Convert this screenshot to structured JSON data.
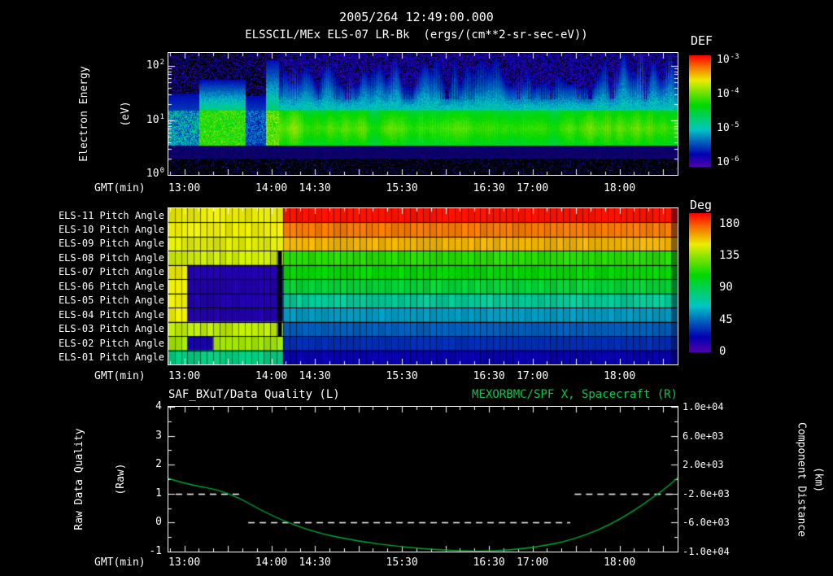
{
  "header": {
    "datetime": "2005/264 12:49:00.000",
    "title": "ELSSCIL/MEx ELS-07 LR-Bk  (ergs/(cm**2-sr-sec-eV))"
  },
  "colors": {
    "background": "#000000",
    "text": "#ffffff",
    "right_title_green": "#00cc44",
    "curve_green": "#00a832"
  },
  "chart_data": [
    {
      "type": "heatmap",
      "name": "electron-energy-spectrogram",
      "title": "ELSSCIL/MEx ELS-07 LR-Bk",
      "units": "ergs/(cm**2-sr-sec-eV)",
      "x_axis": {
        "label": "GMT(min)",
        "start_minute": 769,
        "end_minute": 1120,
        "start_time": "12:49",
        "end_time": "18:40",
        "tick_labels": [
          "13:00",
          "14:00",
          "14:30",
          "15:30",
          "16:30",
          "17:00",
          "18:00"
        ],
        "tick_minutes": [
          780,
          840,
          870,
          930,
          990,
          1020,
          1080
        ],
        "minor_tick_step_minutes": 10
      },
      "y_axis": {
        "label_lines": [
          "Electron Energy",
          "(eV)"
        ],
        "scale": "log",
        "min_ev": 1,
        "max_ev": 170,
        "decade_ticks": [
          {
            "base": "10",
            "exp": "2"
          },
          {
            "base": "10",
            "exp": "1"
          },
          {
            "base": "10",
            "exp": "0"
          }
        ]
      },
      "color_axis": {
        "label": "DEF",
        "scale": "log",
        "min": 1e-06,
        "max": 0.001,
        "tick_labels": [
          {
            "base": "10",
            "exp": "-3"
          },
          {
            "base": "10",
            "exp": "-4"
          },
          {
            "base": "10",
            "exp": "-5"
          },
          {
            "base": "10",
            "exp": "-6"
          }
        ]
      },
      "features": {
        "transition_minute": 845,
        "main_band_ev": [
          3.5,
          15
        ],
        "main_band_level": "~1e-4 (green), continuous and bright after ~14:05, patchy blue/green before",
        "burst": "bright enhancement ~13:10-13:56 reaching ~100 eV just before 14:00",
        "low_energy_gap_ev": [
          2.2,
          3.5
        ],
        "background": "sparse purple noise below 2.2 eV; dark blue with intermittent green streaks above the band"
      }
    },
    {
      "type": "heatmap",
      "name": "pitch-angle-rows",
      "x_axis_label": "GMT(min)",
      "color_axis": {
        "label": "Deg",
        "min": 0,
        "max": 180,
        "tick_labels": [
          "180",
          "135",
          "90",
          "45",
          "0"
        ]
      },
      "transition_minute": 845,
      "rows": [
        {
          "label": "ELS-11 Pitch Angle",
          "before_deg": 140,
          "after_deg": 177
        },
        {
          "label": "ELS-10 Pitch Angle",
          "before_deg": 140,
          "after_deg": 160
        },
        {
          "label": "ELS-09 Pitch Angle",
          "before_deg": 138,
          "after_deg": 150
        },
        {
          "label": "ELS-08 Pitch Angle",
          "before_deg": 135,
          "after_deg": 107
        },
        {
          "label": "ELS-07 Pitch Angle",
          "before_deg": 12,
          "after_deg": 100
        },
        {
          "label": "ELS-06 Pitch Angle",
          "before_deg": 12,
          "after_deg": 90
        },
        {
          "label": "ELS-05 Pitch Angle",
          "before_deg": 12,
          "after_deg": 70
        },
        {
          "label": "ELS-04 Pitch Angle",
          "before_deg": 12,
          "after_deg": 52
        },
        {
          "label": "ELS-03 Pitch Angle",
          "before_deg": 132,
          "after_deg": 40
        },
        {
          "label": "ELS-02 Pitch Angle",
          "before_deg": 128,
          "after_deg": 30
        },
        {
          "label": "ELS-01 Pitch Angle",
          "before_deg": 75,
          "after_deg": 18
        }
      ]
    },
    {
      "type": "line",
      "name": "data-quality-and-spacecraft-x",
      "x_axis_label": "GMT(min)",
      "title_left": "SAF_BXuT/Data Quality (L)",
      "title_right": "MEXORBMC/SPF X, Spacecraft (R)",
      "left_axis": {
        "label_lines": [
          "Raw Data Quality",
          "(Raw)"
        ],
        "min": -1,
        "max": 4,
        "ticks": [
          "4",
          "3",
          "2",
          "1",
          "0",
          "-1"
        ]
      },
      "right_axis": {
        "label_lines": [
          "Component Distance",
          "(km)"
        ],
        "min": -10000,
        "max": 10000,
        "ticks": [
          "1.0e+04",
          "6.0e+03",
          "2.0e+03",
          "-2.0e+03",
          "-6.0e+03",
          "-1.0e+04"
        ]
      },
      "series": [
        {
          "name": "SAF_BXuT/Data Quality",
          "axis": "left",
          "color": "#ffffff",
          "style": "dashed",
          "segments": [
            {
              "value": 1,
              "start_minute": 774,
              "end_minute": 820
            },
            {
              "value": 0,
              "start_minute": 824,
              "end_minute": 1046
            },
            {
              "value": 1,
              "start_minute": 1049,
              "end_minute": 1118
            }
          ]
        },
        {
          "name": "MEXORBMC/SPF X Spacecraft",
          "axis": "right",
          "color": "#00a832",
          "style": "solid",
          "points_minute": [
            769,
            780,
            810,
            840,
            870,
            900,
            930,
            960,
            990,
            1020,
            1050,
            1080,
            1110,
            1120
          ],
          "points_km": [
            120,
            -640,
            -1680,
            -5120,
            -7360,
            -8600,
            -9360,
            -9840,
            -9980,
            -9520,
            -8280,
            -5720,
            -1560,
            200
          ]
        }
      ]
    }
  ]
}
